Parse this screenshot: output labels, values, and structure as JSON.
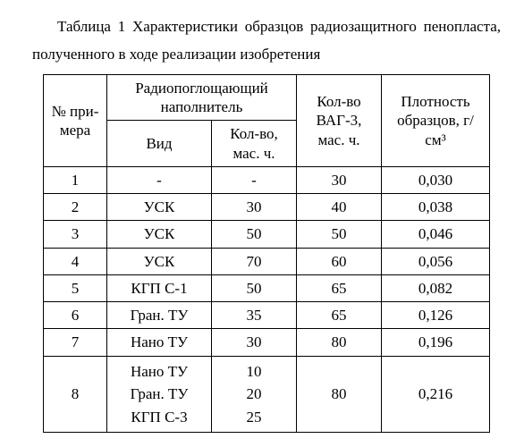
{
  "caption": {
    "line1": "Таблица 1 Характеристики образцов радиозащитного пенопласта,",
    "line2": "полученного в ходе реализации изобретения"
  },
  "headers": {
    "sample_no": "№ при- мера",
    "filler_group": "Радиопоглощающий наполнитель",
    "filler_type": "Вид",
    "filler_qty": "Кол-во, мас. ч.",
    "vag": "Кол-во ВАГ-3, мас. ч.",
    "density": "Плотность образцов, г/см³"
  },
  "rows": [
    {
      "n": "1",
      "type": "-",
      "qty": "-",
      "vag": "30",
      "dens": "0,030"
    },
    {
      "n": "2",
      "type": "УСК",
      "qty": "30",
      "vag": "40",
      "dens": "0,038"
    },
    {
      "n": "3",
      "type": "УСК",
      "qty": "50",
      "vag": "50",
      "dens": "0,046"
    },
    {
      "n": "4",
      "type": "УСК",
      "qty": "70",
      "vag": "60",
      "dens": "0,056"
    },
    {
      "n": "5",
      "type": "КГП С-1",
      "qty": "50",
      "vag": "65",
      "dens": "0,082"
    },
    {
      "n": "6",
      "type": "Гран. ТУ",
      "qty": "35",
      "vag": "65",
      "dens": "0,126"
    },
    {
      "n": "7",
      "type": "Нано ТУ",
      "qty": "30",
      "vag": "80",
      "dens": "0,196"
    }
  ],
  "row8": {
    "n": "8",
    "types": [
      "Нано ТУ",
      "Гран. ТУ",
      "КГП С-3"
    ],
    "qtys": [
      "10",
      "20",
      "25"
    ],
    "vag": "80",
    "dens": "0,216"
  }
}
